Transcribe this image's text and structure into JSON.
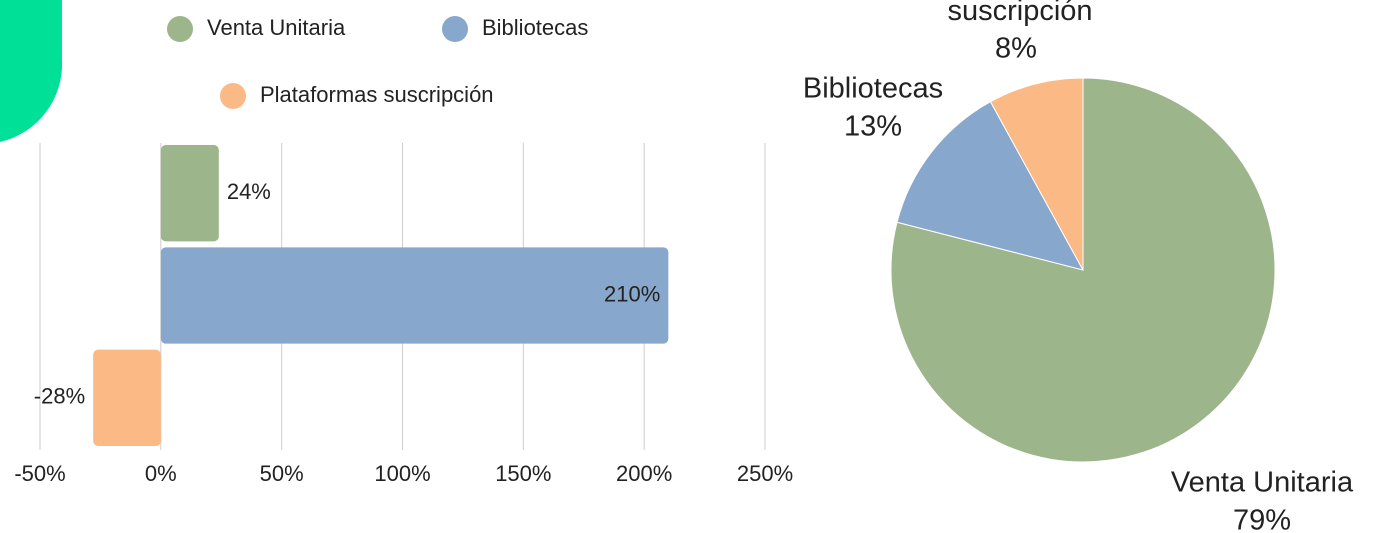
{
  "chart_data": [
    {
      "type": "bar",
      "orientation": "horizontal",
      "series": [
        {
          "name": "Venta Unitaria",
          "color": "#9db58a",
          "values": [
            24
          ],
          "value_labels": [
            "24%"
          ]
        },
        {
          "name": "Bibliotecas",
          "color": "#88a7cd",
          "values": [
            210
          ],
          "value_labels": [
            "210%"
          ]
        },
        {
          "name": "Plataformas suscripción",
          "color": "#fbb986",
          "values": [
            -28
          ],
          "value_labels": [
            "-28%"
          ]
        }
      ],
      "xlim": [
        -50,
        250
      ],
      "xticks": [
        {
          "value": -50,
          "label": "-50%"
        },
        {
          "value": 0,
          "label": "0%"
        },
        {
          "value": 50,
          "label": "50%"
        },
        {
          "value": 100,
          "label": "100%"
        },
        {
          "value": 150,
          "label": "150%"
        },
        {
          "value": 200,
          "label": "200%"
        },
        {
          "value": 250,
          "label": "250%"
        }
      ],
      "grid": true
    },
    {
      "type": "pie",
      "categories": [
        "Venta Unitaria",
        "Bibliotecas",
        "Plataformas suscripción"
      ],
      "values": [
        79,
        13,
        8
      ],
      "value_labels": [
        "79%",
        "13%",
        "8%"
      ],
      "colors": [
        "#9db58a",
        "#88a7cd",
        "#fbb986"
      ]
    }
  ]
}
